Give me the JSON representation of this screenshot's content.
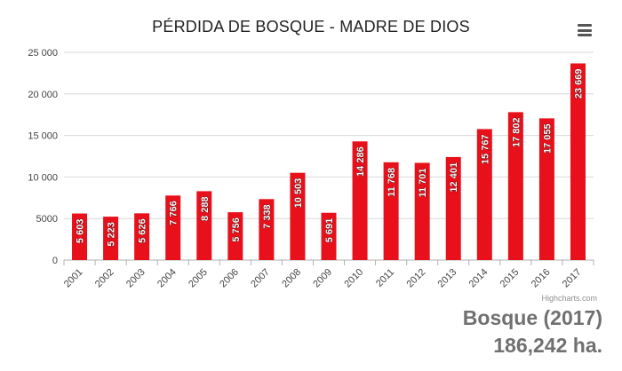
{
  "chart_data": {
    "type": "bar",
    "title": "PÉRDIDA DE BOSQUE - MADRE DE DIOS",
    "categories": [
      "2001",
      "2002",
      "2003",
      "2004",
      "2005",
      "2006",
      "2007",
      "2008",
      "2009",
      "2010",
      "2011",
      "2012",
      "2013",
      "2014",
      "2015",
      "2016",
      "2017"
    ],
    "values": [
      5603,
      5223,
      5626,
      7766,
      8288,
      5756,
      7338,
      10503,
      5691,
      14286,
      11768,
      11701,
      12401,
      15767,
      17802,
      17055,
      23669
    ],
    "value_labels": [
      "5 603",
      "5 223",
      "5 626",
      "7 766",
      "8 288",
      "5 756",
      "7 338",
      "10 503",
      "5 691",
      "14 286",
      "11 768",
      "11 701",
      "12 401",
      "15 767",
      "17 802",
      "17 055",
      "23 669"
    ],
    "ylim": [
      0,
      25000
    ],
    "yticks": [
      0,
      5000,
      10000,
      15000,
      20000,
      25000
    ],
    "ytick_labels": [
      "0",
      "5000",
      "10 000",
      "15 000",
      "20 000",
      "25 000"
    ],
    "grid": true,
    "bar_color": "#e8101a",
    "xlabel": "",
    "ylabel": ""
  },
  "credits": "Highcharts.com",
  "summary": {
    "line1": "Bosque (2017)",
    "line2": "186,242 ha."
  },
  "menu_icon": "hamburger-menu-icon"
}
